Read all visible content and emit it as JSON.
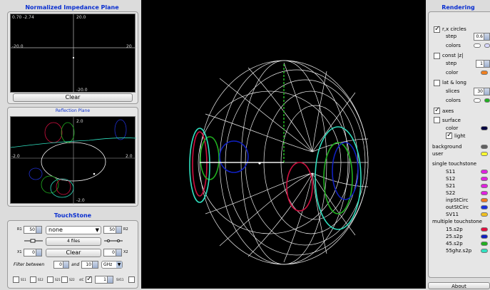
{
  "impedance": {
    "title": "Normalized Impedance Plane",
    "coord": "0.70 -2.74",
    "top_label": "20.0",
    "left_label": "-20.0",
    "right_label": "20",
    "bottom_label": "-20.0",
    "clear_label": "Clear"
  },
  "reflection": {
    "title": "Reflection Plane",
    "top_label": "2.0",
    "left_label": "-2.0",
    "right_label": "2.0",
    "bottom_label": "-2.0"
  },
  "touchstone": {
    "title": "TouchStone",
    "r1_label": "R1",
    "r1_value": "50",
    "select_value": "none",
    "r2_value": "50",
    "r2_label": "R2",
    "files_label": "4 files",
    "x1_label": "X1",
    "x1_value": "0",
    "clear_label": "Clear",
    "x2_value": "0",
    "x2_label": "X2",
    "filter_label": "Filter between",
    "filter_from": "0",
    "and_label": "and",
    "filter_to": "10",
    "unit": "GHz",
    "checks": [
      {
        "label": "S11",
        "checked": false
      },
      {
        "label": "S12",
        "checked": false
      },
      {
        "label": "S21",
        "checked": false
      },
      {
        "label": "S22",
        "checked": false
      },
      {
        "label": "stC",
        "checked": true
      }
    ],
    "stc_value": "1",
    "sv11_label": "SV11"
  },
  "rendering": {
    "title": "Rendering",
    "rx_circles_label": "r,x circles",
    "rx_step_label": "step",
    "rx_step_value": "0.6",
    "rx_colors_label": "colors",
    "const_z_label": "const |z|",
    "z_step_label": "step",
    "z_step_value": "1",
    "z_color_label": "color",
    "latlong_label": "lat & long",
    "slices_label": "slices",
    "slices_value": "30",
    "ll_colors_label": "colors",
    "axes_label": "axes",
    "surface_label": "surface",
    "surface_color_label": "color",
    "light_label": "light",
    "background_label": "background",
    "user_label": "user",
    "single_header": "single touchstone",
    "single_items": [
      {
        "label": "S11",
        "color": "#e020e0"
      },
      {
        "label": "S12",
        "color": "#e020e0"
      },
      {
        "label": "S21",
        "color": "#e020e0"
      },
      {
        "label": "S22",
        "color": "#e020e0"
      },
      {
        "label": "inpStCirc",
        "color": "#f07820"
      },
      {
        "label": "outStCirc",
        "color": "#1830e0"
      },
      {
        "label": "SV11",
        "color": "#f0c020"
      }
    ],
    "multiple_header": "multiple touchstone",
    "multiple_items": [
      {
        "label": "15.s2p",
        "color": "#e01040"
      },
      {
        "label": "25.s2p",
        "color": "#1020c0"
      },
      {
        "label": "45.s2p",
        "color": "#20b020"
      },
      {
        "label": "55ghz.s2p",
        "color": "#30e0c0"
      }
    ],
    "about_label": "About"
  },
  "colors": {
    "header_blue": "#0a2fd0",
    "rx_color_1": "#ffffff",
    "rx_color_2": "#d8d8ff",
    "z_color": "#f08020",
    "ll_color_1": "#ffffff",
    "ll_color_2": "#20b020",
    "surface_color": "#000040",
    "background_swatch": "#606060",
    "user_swatch": "#ffff30"
  }
}
